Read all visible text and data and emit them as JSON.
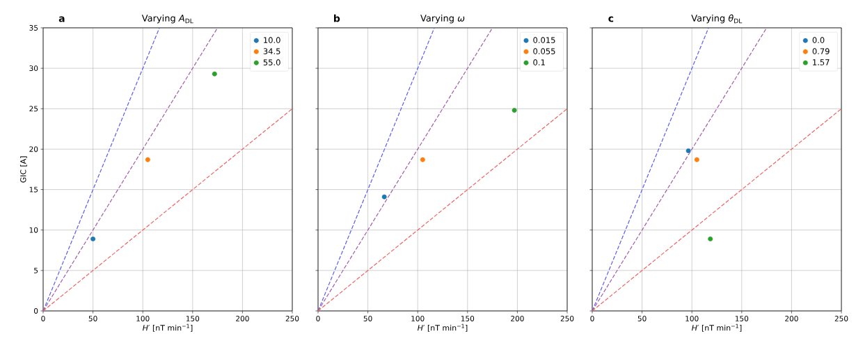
{
  "chart_data": [
    {
      "type": "scatter",
      "title": "Varying *A*$_{DL}$",
      "xlabel": "*H′* [nT min$^{−1}$]",
      "ylabel": "GIC [A]",
      "annotations": [
        "a"
      ],
      "xlim": [
        0,
        250
      ],
      "ylim": [
        0,
        35
      ],
      "xticks": [
        0,
        50,
        100,
        150,
        200,
        250
      ],
      "yticks": [
        0,
        5,
        10,
        15,
        20,
        25,
        30,
        35
      ],
      "grid": true,
      "legend": "top right",
      "marker": "circle",
      "series": [
        {
          "type": "line",
          "x": [
            0,
            116.7
          ],
          "values": [
            0,
            35
          ],
          "color": "#5b5bf2",
          "line_style": "dashed",
          "marker": "none"
        },
        {
          "type": "line",
          "x": [
            0,
            175
          ],
          "values": [
            0,
            35
          ],
          "color": "#a35aab",
          "line_style": "dashed",
          "marker": "none"
        },
        {
          "type": "line",
          "x": [
            0,
            250
          ],
          "values": [
            0,
            25
          ],
          "color": "#f06262",
          "line_style": "dashed",
          "marker": "none"
        },
        {
          "name": "10.0",
          "x": [
            50
          ],
          "values": [
            8.9
          ],
          "color": "#1f77b4"
        },
        {
          "name": "34.5",
          "x": [
            105
          ],
          "values": [
            18.7
          ],
          "color": "#ff7f0e"
        },
        {
          "name": "55.0",
          "x": [
            172
          ],
          "values": [
            29.3
          ],
          "color": "#2ca02c"
        }
      ]
    },
    {
      "type": "scatter",
      "title": "Varying *ω*",
      "xlabel": "*H′* [nT min$^{−1}$]",
      "annotations": [
        "b"
      ],
      "xlim": [
        0,
        250
      ],
      "ylim": [
        0,
        35
      ],
      "xticks": [
        0,
        50,
        100,
        150,
        200,
        250
      ],
      "yticks": [
        0,
        5,
        10,
        15,
        20,
        25,
        30,
        35
      ],
      "grid": true,
      "legend": "top right",
      "marker": "circle",
      "tick_labels": "x",
      "series": [
        {
          "type": "line",
          "x": [
            0,
            116.7
          ],
          "values": [
            0,
            35
          ],
          "color": "#5b5bf2",
          "line_style": "dashed",
          "marker": "none"
        },
        {
          "type": "line",
          "x": [
            0,
            175
          ],
          "values": [
            0,
            35
          ],
          "color": "#a35aab",
          "line_style": "dashed",
          "marker": "none"
        },
        {
          "type": "line",
          "x": [
            0,
            250
          ],
          "values": [
            0,
            25
          ],
          "color": "#f06262",
          "line_style": "dashed",
          "marker": "none"
        },
        {
          "name": "0.015",
          "x": [
            66.5
          ],
          "values": [
            14.1
          ],
          "color": "#1f77b4"
        },
        {
          "name": "0.055",
          "x": [
            105
          ],
          "values": [
            18.7
          ],
          "color": "#ff7f0e"
        },
        {
          "name": "0.1",
          "x": [
            197
          ],
          "values": [
            24.8
          ],
          "color": "#2ca02c"
        }
      ]
    },
    {
      "type": "scatter",
      "title": "Varying *θ*$_{DL}$",
      "xlabel": "*H′* [nT min$^{−1}$]",
      "annotations": [
        "c"
      ],
      "xlim": [
        0,
        250
      ],
      "ylim": [
        0,
        35
      ],
      "xticks": [
        0,
        50,
        100,
        150,
        200,
        250
      ],
      "yticks": [
        0,
        5,
        10,
        15,
        20,
        25,
        30,
        35
      ],
      "grid": true,
      "legend": "top right",
      "marker": "circle",
      "tick_labels": "x",
      "series": [
        {
          "type": "line",
          "x": [
            0,
            116.7
          ],
          "values": [
            0,
            35
          ],
          "color": "#5b5bf2",
          "line_style": "dashed",
          "marker": "none"
        },
        {
          "type": "line",
          "x": [
            0,
            175
          ],
          "values": [
            0,
            35
          ],
          "color": "#a35aab",
          "line_style": "dashed",
          "marker": "none"
        },
        {
          "type": "line",
          "x": [
            0,
            250
          ],
          "values": [
            0,
            25
          ],
          "color": "#f06262",
          "line_style": "dashed",
          "marker": "none"
        },
        {
          "name": "0.0",
          "x": [
            96.5
          ],
          "values": [
            19.8
          ],
          "color": "#1f77b4"
        },
        {
          "name": "0.79",
          "x": [
            105
          ],
          "values": [
            18.7
          ],
          "color": "#ff7f0e"
        },
        {
          "name": "1.57",
          "x": [
            118.5
          ],
          "values": [
            8.9
          ],
          "color": "#2ca02c"
        }
      ]
    }
  ]
}
